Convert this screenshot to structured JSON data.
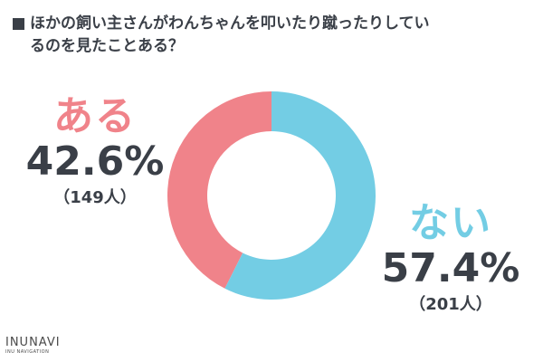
{
  "title": {
    "line1": "ほかの飼い主さんがわんちゃんを叩いたり蹴ったりしてい",
    "line2": "るのを見たことある？"
  },
  "chart_data": {
    "type": "pie",
    "donut": true,
    "start_angle_deg": 0,
    "direction": "counterclockwise",
    "slices": [
      {
        "label": "ある",
        "percent": 42.6,
        "percent_text": "42.6%",
        "count_text": "（149人）",
        "count": 149,
        "color": "#f0838a"
      },
      {
        "label": "ない",
        "percent": 57.4,
        "percent_text": "57.4%",
        "count_text": "（201人）",
        "count": 201,
        "color": "#73cde4"
      }
    ]
  },
  "logo": {
    "main": "INUNAVI",
    "sub": "INU NAVIGATION"
  }
}
